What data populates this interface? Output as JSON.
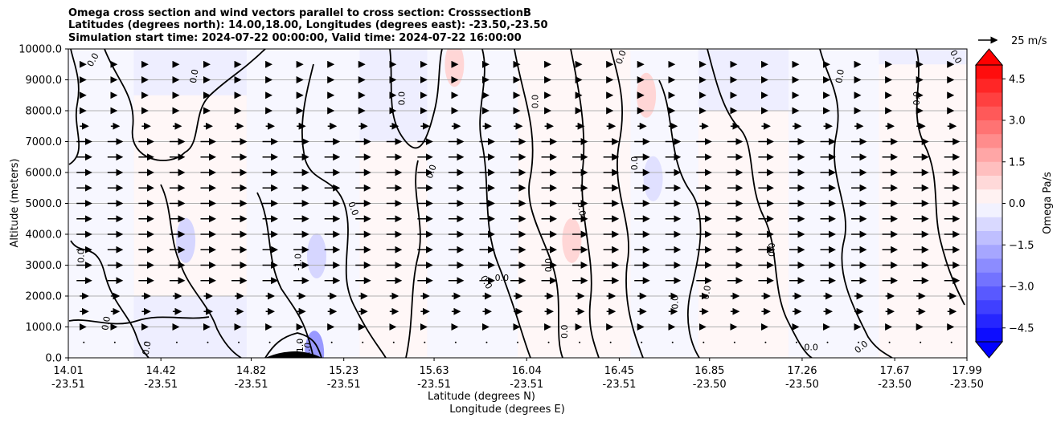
{
  "chart_data": {
    "type": "heatmap",
    "title_lines": [
      "Omega cross section and wind vectors parallel to cross section: CrosssectionB",
      "Latitudes (degrees north): 14.00,18.00, Longitudes (degrees east): -23.50,-23.50",
      "Simulation start time: 2024-07-22 00:00:00, Valid time: 2024-07-22 16:00:00"
    ],
    "ylabel": "Altitude (meters)",
    "xlabel_lat": "Latitude (degrees N)",
    "xlabel_lon": "Longitude (degrees E)",
    "ylim": [
      0,
      10000
    ],
    "y_ticks": [
      "0.0",
      "1000.0",
      "2000.0",
      "3000.0",
      "4000.0",
      "5000.0",
      "6000.0",
      "7000.0",
      "8000.0",
      "9000.0",
      "10000.0"
    ],
    "x_range": [
      14.01,
      17.99
    ],
    "x_ticks": [
      {
        "lat": "14.01",
        "lon": "-23.51"
      },
      {
        "lat": "14.42",
        "lon": "-23.51"
      },
      {
        "lat": "14.82",
        "lon": "-23.51"
      },
      {
        "lat": "15.23",
        "lon": "-23.51"
      },
      {
        "lat": "15.63",
        "lon": "-23.51"
      },
      {
        "lat": "16.04",
        "lon": "-23.51"
      },
      {
        "lat": "16.45",
        "lon": "-23.51"
      },
      {
        "lat": "16.85",
        "lon": "-23.50"
      },
      {
        "lat": "17.26",
        "lon": "-23.50"
      },
      {
        "lat": "17.67",
        "lon": "-23.50"
      },
      {
        "lat": "17.99",
        "lon": "-23.50"
      }
    ],
    "grid": "horizontal",
    "colorbar": {
      "label": "Omega Pa/s",
      "min": -5.0,
      "max": 5.0,
      "extend": "both",
      "ticks": [
        "4.5",
        "3.0",
        "1.5",
        "0.0",
        "−1.5",
        "−3.0",
        "−4.5"
      ],
      "tick_values": [
        4.5,
        3.0,
        1.5,
        0.0,
        -1.5,
        -3.0,
        -4.5
      ],
      "colormap": "bwr"
    },
    "quiver_key": {
      "label": "25 m/s",
      "speed": 25
    },
    "contour_labels": [
      "0.0",
      "-1.0",
      "1.0"
    ],
    "vector_rows_altitude": [
      500,
      1000,
      1500,
      2000,
      2500,
      3000,
      3500,
      4000,
      4500,
      5000,
      5500,
      6000,
      6500,
      7000,
      7500,
      8000,
      8500,
      9000,
      9500
    ],
    "regions": [
      {
        "lat": [
          14.01,
          14.3
        ],
        "alt": [
          0,
          10000
        ],
        "omega": -0.15
      },
      {
        "lat": [
          14.3,
          14.8
        ],
        "alt": [
          2000,
          8500
        ],
        "omega": 0.15
      },
      {
        "lat": [
          14.8,
          15.3
        ],
        "alt": [
          0,
          10000
        ],
        "omega": -0.15
      },
      {
        "lat": [
          15.3,
          15.6
        ],
        "alt": [
          0,
          7000
        ],
        "omega": 0.15
      },
      {
        "lat": [
          15.6,
          16.0
        ],
        "alt": [
          0,
          10000
        ],
        "omega": -0.15
      },
      {
        "lat": [
          16.0,
          16.5
        ],
        "alt": [
          0,
          10000
        ],
        "omega": 0.15
      },
      {
        "lat": [
          16.5,
          16.8
        ],
        "alt": [
          0,
          10000
        ],
        "omega": -0.15
      },
      {
        "lat": [
          16.8,
          17.2
        ],
        "alt": [
          0,
          8000
        ],
        "omega": 0.15
      },
      {
        "lat": [
          17.2,
          17.6
        ],
        "alt": [
          0,
          10000
        ],
        "omega": -0.15
      },
      {
        "lat": [
          17.6,
          17.99
        ],
        "alt": [
          0,
          9500
        ],
        "omega": 0.15
      }
    ],
    "patches": [
      {
        "lat": 15.1,
        "alt": 150,
        "omega": -2.0
      },
      {
        "lat": 15.11,
        "alt": 3300,
        "omega": -0.8
      },
      {
        "lat": 14.53,
        "alt": 3800,
        "omega": -0.8
      },
      {
        "lat": 15.72,
        "alt": 9500,
        "omega": 0.8
      },
      {
        "lat": 16.24,
        "alt": 3800,
        "omega": 0.8
      },
      {
        "lat": 16.57,
        "alt": 8500,
        "omega": 0.8
      },
      {
        "lat": 16.6,
        "alt": 5800,
        "omega": -0.6
      }
    ]
  }
}
